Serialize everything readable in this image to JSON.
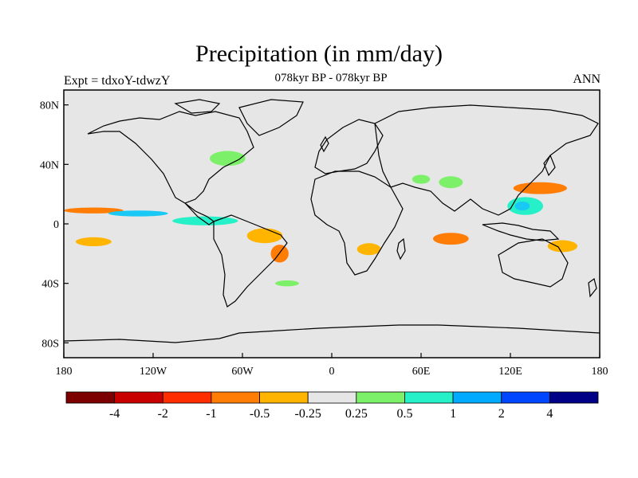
{
  "title": "Precipitation (in mm/day)",
  "subtitle": "078kyr BP - 078kyr BP",
  "left_label": "Expt = tdxoY-tdwzY",
  "right_label": "ANN",
  "map": {
    "projection": "cylindrical-equidistant",
    "lon_range": [
      -180,
      180
    ],
    "lat_range": [
      -90,
      90
    ],
    "background_color": "#e6e6e6",
    "x_ticks": [
      {
        "lon": -180,
        "label": "180"
      },
      {
        "lon": -120,
        "label": "120W"
      },
      {
        "lon": -60,
        "label": "60W"
      },
      {
        "lon": 0,
        "label": "0"
      },
      {
        "lon": 60,
        "label": "60E"
      },
      {
        "lon": 120,
        "label": "120E"
      },
      {
        "lon": 180,
        "label": "180"
      }
    ],
    "y_ticks": [
      {
        "lat": 80,
        "label": "80N"
      },
      {
        "lat": 40,
        "label": "40N"
      },
      {
        "lat": 0,
        "label": "0"
      },
      {
        "lat": -40,
        "label": "40S"
      },
      {
        "lat": -80,
        "label": "80S"
      }
    ],
    "anomaly_regions": [
      {
        "name": "n-atlantic-pos",
        "lon": -70,
        "lat": 44,
        "rlon": 12,
        "rlat": 5,
        "color": "#7cf068"
      },
      {
        "name": "trop-pac-north-pos",
        "lon": -160,
        "lat": 9,
        "rlon": 20,
        "rlat": 2,
        "color": "#ff7d05"
      },
      {
        "name": "trop-pac-north-pos2",
        "lon": -130,
        "lat": 7,
        "rlon": 20,
        "rlat": 2,
        "color": "#19c8f5"
      },
      {
        "name": "trop-pac-eq-pos",
        "lon": -85,
        "lat": 2,
        "rlon": 22,
        "rlat": 3,
        "color": "#25f0c8"
      },
      {
        "name": "s-pac-neg",
        "lon": -160,
        "lat": -12,
        "rlon": 12,
        "rlat": 3,
        "color": "#ffb400"
      },
      {
        "name": "amazon-neg",
        "lon": -45,
        "lat": -8,
        "rlon": 12,
        "rlat": 5,
        "color": "#ffb400"
      },
      {
        "name": "brazil-neg",
        "lon": -35,
        "lat": -20,
        "rlon": 6,
        "rlat": 6,
        "color": "#ff7d05"
      },
      {
        "name": "s-atl-pos",
        "lon": -30,
        "lat": -40,
        "rlon": 8,
        "rlat": 2,
        "color": "#7cf068"
      },
      {
        "name": "s-africa-neg",
        "lon": 25,
        "lat": -17,
        "rlon": 8,
        "rlat": 4,
        "color": "#ffb400"
      },
      {
        "name": "indian-ocean-neg",
        "lon": 80,
        "lat": -10,
        "rlon": 12,
        "rlat": 4,
        "color": "#ff7d05"
      },
      {
        "name": "india-pos",
        "lon": 80,
        "lat": 28,
        "rlon": 8,
        "rlat": 4,
        "color": "#7cf068"
      },
      {
        "name": "w-pac-pos",
        "lon": 130,
        "lat": 12,
        "rlon": 12,
        "rlat": 6,
        "color": "#25f0c8"
      },
      {
        "name": "w-pac-pos-core",
        "lon": 128,
        "lat": 12,
        "rlon": 5,
        "rlat": 3,
        "color": "#19c8f5"
      },
      {
        "name": "nw-pac-neg",
        "lon": 140,
        "lat": 24,
        "rlon": 18,
        "rlat": 4,
        "color": "#ff7d05"
      },
      {
        "name": "maritime-neg",
        "lon": 155,
        "lat": -15,
        "rlon": 10,
        "rlat": 4,
        "color": "#ffb400"
      },
      {
        "name": "c-asia-pos",
        "lon": 60,
        "lat": 30,
        "rlon": 6,
        "rlat": 3,
        "color": "#7cf068"
      }
    ]
  },
  "colorbar": {
    "colors": [
      "#7d0000",
      "#c80000",
      "#ff2d00",
      "#ff7d05",
      "#ffb400",
      "#e6e6e6",
      "#7cf068",
      "#25f0c8",
      "#00aaff",
      "#0046ff",
      "#000087"
    ],
    "labels": [
      {
        "text": "-4",
        "after": 1
      },
      {
        "text": "-2",
        "after": 2
      },
      {
        "text": "-1",
        "after": 3
      },
      {
        "text": "-0.5",
        "after": 4
      },
      {
        "text": "-0.25",
        "after": 5
      },
      {
        "text": "0.25",
        "after": 6
      },
      {
        "text": "0.5",
        "after": 7
      },
      {
        "text": "1",
        "after": 8
      },
      {
        "text": "2",
        "after": 9
      },
      {
        "text": "4",
        "after": 10
      }
    ]
  }
}
